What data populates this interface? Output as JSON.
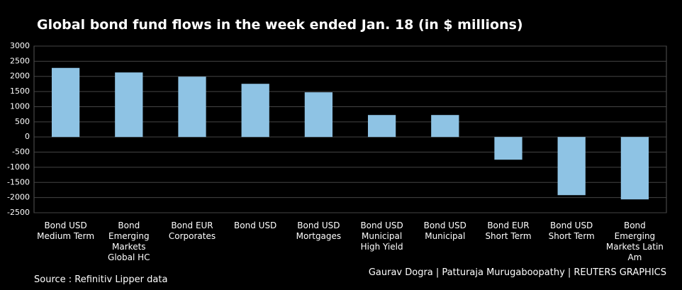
{
  "chart_data": {
    "type": "bar",
    "title": "Global bond fund flows in the week ended Jan. 18 (in $ millions)",
    "source": "Source : Refinitiv Lipper data",
    "credit": "Gaurav Dogra | Patturaja Murugaboopathy | REUTERS GRAPHICS",
    "categories": [
      "Bond USD Medium Term",
      "Bond Emerging Markets Global HC",
      "Bond EUR Corporates",
      "Bond USD",
      "Bond USD Mortgages",
      "Bond USD Municipal High Yield",
      "Bond USD Municipal",
      "Bond EUR Short Term",
      "Bond USD Short Term",
      "Bond Emerging Markets Latin Am"
    ],
    "values": [
      2280,
      2130,
      1990,
      1755,
      1475,
      725,
      725,
      -750,
      -1920,
      -2060
    ],
    "color": "#8ec3e4",
    "ylim": [
      -2500,
      3000
    ],
    "yticks": [
      -2500,
      -2000,
      -1500,
      -1000,
      -500,
      0,
      500,
      1000,
      1500,
      2000,
      2500,
      3000
    ],
    "grid": true
  }
}
